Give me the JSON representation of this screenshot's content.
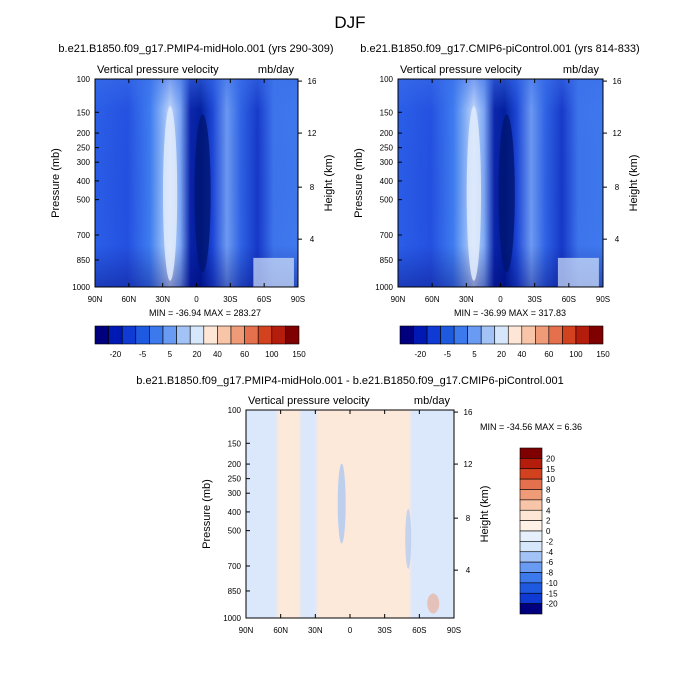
{
  "figure": {
    "title": "DJF"
  },
  "chart_data": [
    {
      "type": "heatmap",
      "title": "b.e21.B1850.f09_g17.PMIP4-midHolo.001 (yrs 290-309)",
      "subtitle_left": "Vertical pressure velocity",
      "subtitle_right": "mb/day",
      "ylabel": "Pressure (mb)",
      "ylabel_right": "Height (km)",
      "x_ticks": [
        "90N",
        "60N",
        "30N",
        "0",
        "30S",
        "60S",
        "90S"
      ],
      "y_ticks": [
        "100",
        "150",
        "200",
        "250",
        "300",
        "400",
        "500",
        "700",
        "850",
        "1000"
      ],
      "y_ticks_right": [
        "16",
        "12",
        "8",
        "4"
      ],
      "min_label": "MIN = -36.94",
      "max_label": "MAX = 283.27",
      "colorbar_labels": [
        "-20",
        "-5",
        "5",
        "20",
        "40",
        "60",
        "100",
        "150"
      ],
      "colorbar_colors": [
        "#00007f",
        "#0019b4",
        "#0f3ad3",
        "#1e5ae0",
        "#3b79ec",
        "#6a9bf3",
        "#a3c3f7",
        "#d6e6fb",
        "#fde6d6",
        "#f8c5a8",
        "#f09b78",
        "#e5704d",
        "#d3421f",
        "#b41c0b",
        "#7f0000"
      ]
    },
    {
      "type": "heatmap",
      "title": "b.e21.B1850.f09_g17.CMIP6-piControl.001 (yrs 814-833)",
      "subtitle_left": "Vertical pressure velocity",
      "subtitle_right": "mb/day",
      "ylabel": "Pressure (mb)",
      "ylabel_right": "Height (km)",
      "x_ticks": [
        "90N",
        "60N",
        "30N",
        "0",
        "30S",
        "60S",
        "90S"
      ],
      "y_ticks": [
        "100",
        "150",
        "200",
        "250",
        "300",
        "400",
        "500",
        "700",
        "850",
        "1000"
      ],
      "y_ticks_right": [
        "16",
        "12",
        "8",
        "4"
      ],
      "min_label": "MIN = -36.99",
      "max_label": "MAX = 317.83",
      "colorbar_labels": [
        "-20",
        "-5",
        "5",
        "20",
        "40",
        "60",
        "100",
        "150"
      ],
      "colorbar_colors": [
        "#00007f",
        "#0019b4",
        "#0f3ad3",
        "#1e5ae0",
        "#3b79ec",
        "#6a9bf3",
        "#a3c3f7",
        "#d6e6fb",
        "#fde6d6",
        "#f8c5a8",
        "#f09b78",
        "#e5704d",
        "#d3421f",
        "#b41c0b",
        "#7f0000"
      ]
    },
    {
      "type": "heatmap",
      "title": "b.e21.B1850.f09_g17.PMIP4-midHolo.001 - b.e21.B1850.f09_g17.CMIP6-piControl.001",
      "subtitle_left": "Vertical pressure velocity",
      "subtitle_right": "mb/day",
      "ylabel": "Pressure (mb)",
      "ylabel_right": "Height (km)",
      "x_ticks": [
        "90N",
        "60N",
        "30N",
        "0",
        "30S",
        "60S",
        "90S"
      ],
      "y_ticks": [
        "100",
        "150",
        "200",
        "250",
        "300",
        "400",
        "500",
        "700",
        "850",
        "1000"
      ],
      "y_ticks_right": [
        "16",
        "12",
        "8",
        "4"
      ],
      "min_label": "MIN = -34.56",
      "max_label": "MAX =   6.36",
      "colorbar_labels": [
        "20",
        "15",
        "10",
        "8",
        "6",
        "4",
        "2",
        "0",
        "-2",
        "-4",
        "-6",
        "-8",
        "-10",
        "-15",
        "-20"
      ],
      "colorbar_colors": [
        "#7f0000",
        "#b41c0b",
        "#d3421f",
        "#e5704d",
        "#f09b78",
        "#f8c5a8",
        "#fde6d6",
        "#fff1e6",
        "#e6f0fc",
        "#d6e6fb",
        "#a3c3f7",
        "#6a9bf3",
        "#3b79ec",
        "#1e5ae0",
        "#0f3ad3",
        "#00007f"
      ]
    }
  ]
}
